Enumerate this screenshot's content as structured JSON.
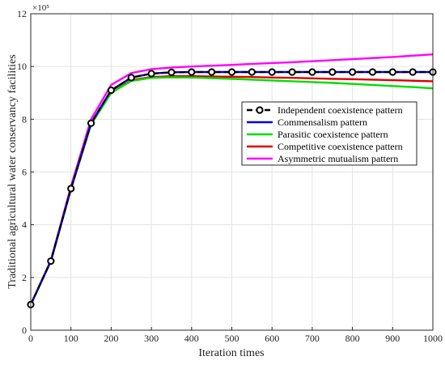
{
  "chart_data": {
    "type": "line",
    "xlabel": "Iteration times",
    "ylabel": "Traditional agricultural water conservancy facilities",
    "y_scale_label": "×10⁵",
    "xlim": [
      0,
      1000
    ],
    "ylim": [
      0,
      12
    ],
    "xticks": [
      "0",
      "100",
      "200",
      "300",
      "400",
      "500",
      "600",
      "700",
      "800",
      "900",
      "1000"
    ],
    "yticks": [
      "0",
      "2",
      "4",
      "6",
      "8",
      "10",
      "12"
    ],
    "grid": true,
    "legend_position": "inside-right",
    "series": [
      {
        "name": "Independent coexistence pattern",
        "color": "#000000",
        "dash": true,
        "marker": "circle",
        "x": [
          0,
          50,
          100,
          150,
          200,
          250,
          300,
          350,
          400,
          450,
          500,
          550,
          600,
          650,
          700,
          750,
          800,
          850,
          900,
          950,
          1000
        ],
        "y": [
          0.97,
          2.62,
          5.37,
          7.85,
          9.1,
          9.58,
          9.73,
          9.78,
          9.79,
          9.79,
          9.79,
          9.79,
          9.79,
          9.79,
          9.79,
          9.79,
          9.79,
          9.79,
          9.79,
          9.79,
          9.79
        ]
      },
      {
        "name": "Commensalism  pattern",
        "color": "#0000cc",
        "x": [
          0,
          50,
          100,
          150,
          200,
          250,
          300,
          350,
          400,
          450,
          500,
          550,
          600,
          650,
          700,
          750,
          800,
          850,
          900,
          950,
          1000
        ],
        "y": [
          0.97,
          2.62,
          5.37,
          7.85,
          9.1,
          9.58,
          9.73,
          9.78,
          9.79,
          9.79,
          9.79,
          9.79,
          9.79,
          9.79,
          9.79,
          9.79,
          9.79,
          9.79,
          9.79,
          9.79,
          9.79
        ]
      },
      {
        "name": "Parasitic coexistence pattern",
        "color": "#00dd00",
        "x": [
          0,
          50,
          100,
          150,
          200,
          250,
          300,
          350,
          400,
          450,
          500,
          550,
          600,
          650,
          700,
          750,
          800,
          850,
          900,
          950,
          1000
        ],
        "y": [
          0.97,
          2.62,
          5.35,
          7.8,
          9.0,
          9.45,
          9.57,
          9.59,
          9.58,
          9.56,
          9.53,
          9.5,
          9.47,
          9.44,
          9.41,
          9.38,
          9.34,
          9.3,
          9.26,
          9.22,
          9.17
        ]
      },
      {
        "name": "Competitive coexistence pattern",
        "color": "#dd0000",
        "x": [
          0,
          50,
          100,
          150,
          200,
          250,
          300,
          350,
          400,
          450,
          500,
          550,
          600,
          650,
          700,
          750,
          800,
          850,
          900,
          950,
          1000
        ],
        "y": [
          0.97,
          2.62,
          5.35,
          7.8,
          9.02,
          9.48,
          9.6,
          9.63,
          9.63,
          9.62,
          9.61,
          9.6,
          9.58,
          9.57,
          9.55,
          9.53,
          9.52,
          9.5,
          9.48,
          9.46,
          9.44
        ]
      },
      {
        "name": "Asymmetric mutualism pattern",
        "color": "#ff00ff",
        "x": [
          0,
          50,
          100,
          150,
          200,
          250,
          300,
          350,
          400,
          450,
          500,
          550,
          600,
          650,
          700,
          750,
          800,
          850,
          900,
          950,
          1000
        ],
        "y": [
          0.97,
          2.65,
          5.45,
          8.0,
          9.3,
          9.75,
          9.9,
          9.96,
          10.0,
          10.03,
          10.06,
          10.1,
          10.13,
          10.16,
          10.2,
          10.24,
          10.28,
          10.32,
          10.36,
          10.41,
          10.46
        ]
      }
    ]
  }
}
